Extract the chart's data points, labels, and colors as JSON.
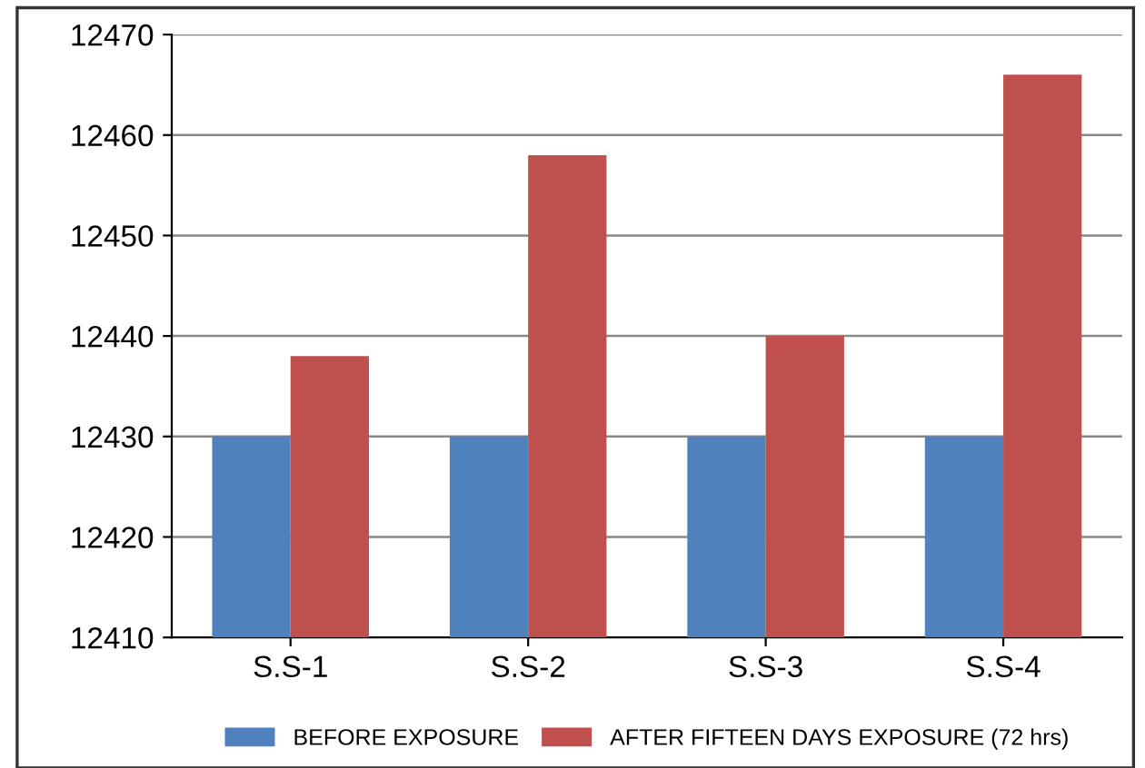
{
  "chart_data": {
    "type": "bar",
    "categories": [
      "S.S-1",
      "S.S-2",
      "S.S-3",
      "S.S-4"
    ],
    "series": [
      {
        "name": "BEFORE EXPOSURE",
        "color": "#4f81bd",
        "values": [
          12430,
          12430,
          12430,
          12430
        ]
      },
      {
        "name": "AFTER FIFTEEN DAYS EXPOSURE (72 hrs)",
        "color": "#c0504d",
        "values": [
          12438,
          12458,
          12440,
          12466
        ]
      }
    ],
    "ylim": [
      12410,
      12470
    ],
    "yticks": [
      12410,
      12420,
      12430,
      12440,
      12450,
      12460,
      12470
    ],
    "grid": "y",
    "legend": "bottom"
  }
}
